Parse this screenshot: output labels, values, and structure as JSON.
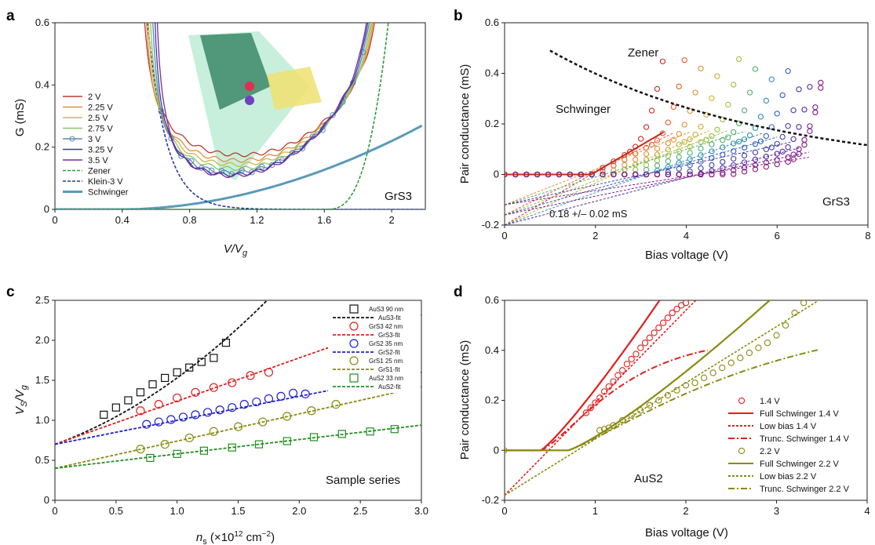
{
  "chart_data": [
    {
      "panel": "a",
      "type": "line",
      "xlabel": "V/V",
      "xlabel_sub": "g",
      "ylabel": "G (mS)",
      "xlim": [
        0,
        2.2
      ],
      "ylim": [
        0,
        0.6
      ],
      "xticks": [
        "0",
        "0.4",
        "0.8",
        "1.2",
        "1.6",
        "2"
      ],
      "yticks": [
        "0",
        "0.2",
        "0.4",
        "0.6"
      ],
      "annotation": "GrS3",
      "legend_placement": "left",
      "series": [
        {
          "name": "2 V",
          "color": "#c03a2b",
          "min_x": 1.05,
          "min_y": 0.12
        },
        {
          "name": "2.25 V",
          "color": "#d9913c",
          "min_x": 1.02,
          "min_y": 0.1
        },
        {
          "name": "2.5 V",
          "color": "#c8b84a",
          "min_x": 1.0,
          "min_y": 0.085
        },
        {
          "name": "2.75 V",
          "color": "#86c66a",
          "min_x": 0.98,
          "min_y": 0.07
        },
        {
          "name": "3 V",
          "color": "#5a8ab0",
          "min_x": 0.95,
          "min_y": 0.055,
          "markers": true
        },
        {
          "name": "3.25 V",
          "color": "#3c3ca0",
          "min_x": 0.93,
          "min_y": 0.045
        },
        {
          "name": "3.5 V",
          "color": "#7a2da0",
          "min_x": 0.92,
          "min_y": 0.04
        },
        {
          "name": "Zener",
          "color": "#2a9a3a",
          "style": "dashed"
        },
        {
          "name": "Klein-3 V",
          "color": "#2a3a9a",
          "style": "dashed"
        },
        {
          "name": "Schwinger",
          "color": "#5a9ab8",
          "style": "thick"
        }
      ]
    },
    {
      "panel": "b",
      "type": "scatter",
      "xlabel": "Bias voltage (V)",
      "ylabel": "Pair conductance (mS)",
      "xlim": [
        0,
        8
      ],
      "ylim": [
        -0.2,
        0.6
      ],
      "xticks": [
        "0",
        "2",
        "4",
        "6",
        "8"
      ],
      "yticks": [
        "-0.2",
        "0",
        "0.2",
        "0.4",
        "0.6"
      ],
      "annotations": [
        "Zener",
        "Schwinger",
        "GrS3",
        "0.18 +/– 0.02 mS"
      ],
      "colors": [
        "#c8281e",
        "#e06030",
        "#e09030",
        "#c8b030",
        "#9ac040",
        "#50b070",
        "#3090b0",
        "#3060c0",
        "#4040b0",
        "#5028a0",
        "#7a2090",
        "#8a1a80"
      ],
      "series_slopes": [
        0.105,
        0.098,
        0.09,
        0.083,
        0.076,
        0.07,
        0.064,
        0.058,
        0.052,
        0.047,
        0.043,
        0.04
      ],
      "series_intercept": -0.2,
      "series_xmax": [
        3.5,
        4.0,
        4.4,
        4.8,
        5.2,
        5.6,
        6.0,
        6.3,
        6.6,
        6.8,
        7.0,
        7.0
      ],
      "black_dashed": {
        "x": [
          1.0,
          2.0,
          3.0,
          4.0,
          5.0,
          6.0,
          7.0,
          8.0
        ],
        "y": [
          0.49,
          0.41,
          0.34,
          0.28,
          0.23,
          0.19,
          0.15,
          0.115
        ]
      }
    },
    {
      "panel": "c",
      "type": "scatter",
      "xlabel": "n",
      "xlabel_sub": "s",
      "xlabel_rest": " (×10",
      "xlabel_sup": "12",
      "xlabel_end": " cm",
      "xlabel_sup2": "−2",
      "xlabel_close": ")",
      "ylabel": "V",
      "ylabel_sub": "S",
      "ylabel_rest": "/V",
      "ylabel_sub2": "g",
      "xlim": [
        0,
        3.0
      ],
      "ylim": [
        0,
        2.5
      ],
      "xticks": [
        "0",
        "0.5",
        "1.0",
        "1.5",
        "2.0",
        "2.5",
        "3.0"
      ],
      "yticks": [
        "0",
        "0.5",
        "1.0",
        "1.5",
        "2.0",
        "2.5"
      ],
      "annotation": "Sample series",
      "legend_placement": "top-right",
      "series": [
        {
          "name": "AuS3 90 nm",
          "fit": "AuS3-fit",
          "color": "#111111",
          "marker": "square",
          "x": [
            0.4,
            0.5,
            0.6,
            0.7,
            0.8,
            0.9,
            1.0,
            1.1,
            1.2,
            1.3,
            1.4
          ],
          "y": [
            1.07,
            1.16,
            1.25,
            1.35,
            1.45,
            1.53,
            1.6,
            1.66,
            1.73,
            1.78,
            1.97
          ],
          "fit_a": 0.7,
          "fit_b": 0.55,
          "fit_c": 0.28
        },
        {
          "name": "GrS3 42 nm",
          "fit": "GrS3-fit",
          "color": "#e02020",
          "marker": "circle",
          "x": [
            0.7,
            0.85,
            1.0,
            1.15,
            1.3,
            1.45,
            1.6,
            1.75
          ],
          "y": [
            1.12,
            1.2,
            1.28,
            1.35,
            1.41,
            1.47,
            1.56,
            1.6
          ],
          "fit_a": 0.7,
          "fit_b": 0.54,
          "fit_c": 0.0
        },
        {
          "name": "GrS2 35 nm",
          "fit": "GrS2-fit",
          "color": "#2020d0",
          "marker": "circle",
          "x": [
            0.75,
            0.85,
            0.95,
            1.05,
            1.15,
            1.25,
            1.35,
            1.45,
            1.55,
            1.65,
            1.75,
            1.85,
            1.95,
            2.05
          ],
          "y": [
            0.95,
            0.98,
            1.01,
            1.04,
            1.07,
            1.1,
            1.13,
            1.16,
            1.2,
            1.23,
            1.27,
            1.3,
            1.34,
            1.33
          ],
          "fit_a": 0.7,
          "fit_b": 0.3,
          "fit_c": 0.0
        },
        {
          "name": "GrS1 25 nm",
          "fit": "GrS1-fit",
          "color": "#8a8a10",
          "marker": "circle",
          "x": [
            0.7,
            0.9,
            1.1,
            1.3,
            1.5,
            1.7,
            1.9,
            2.1,
            2.3
          ],
          "y": [
            0.64,
            0.7,
            0.78,
            0.86,
            0.92,
            0.98,
            1.05,
            1.12,
            1.2
          ],
          "fit_a": 0.4,
          "fit_b": 0.34,
          "fit_c": 0.0
        },
        {
          "name": "AuS2 33 nm",
          "fit": "AuS2-fit",
          "color": "#209020",
          "marker": "square",
          "x": [
            0.78,
            1.0,
            1.22,
            1.45,
            1.67,
            1.9,
            2.12,
            2.35,
            2.58,
            2.78
          ],
          "y": [
            0.53,
            0.58,
            0.62,
            0.66,
            0.7,
            0.74,
            0.79,
            0.83,
            0.86,
            0.89
          ],
          "fit_a": 0.4,
          "fit_b": 0.18,
          "fit_c": 0.0
        }
      ]
    },
    {
      "panel": "d",
      "type": "scatter",
      "xlabel": "Bias voltage (V)",
      "ylabel": "Pair conductance (mS)",
      "xlim": [
        0,
        4
      ],
      "ylim": [
        -0.2,
        0.6
      ],
      "xticks": [
        "0",
        "1",
        "2",
        "3",
        "4"
      ],
      "yticks": [
        "-0.2",
        "0",
        "0.2",
        "0.4",
        "0.6"
      ],
      "annotation": "AuS2",
      "legend_placement": "bottom-right",
      "legend": [
        "1.4 V",
        "Full Schwinger 1.4 V",
        "Low bias 1.4 V",
        "Trunc. Schwinger 1.4 V",
        "2.2 V",
        "Full Schwinger 2.2 V",
        "Low bias 2.2 V",
        "Trunc. Schwinger 2.2 V"
      ],
      "series_14": {
        "color": "#e01e1e",
        "points_x": [
          0.9,
          0.95,
          1.0,
          1.05,
          1.1,
          1.15,
          1.2,
          1.25,
          1.3,
          1.35,
          1.4,
          1.45,
          1.5,
          1.55,
          1.6,
          1.65,
          1.7,
          1.75,
          1.8,
          1.85,
          1.9,
          1.95,
          2.0
        ],
        "points_y": [
          0.15,
          0.17,
          0.19,
          0.21,
          0.235,
          0.255,
          0.275,
          0.3,
          0.32,
          0.345,
          0.365,
          0.385,
          0.41,
          0.43,
          0.45,
          0.47,
          0.49,
          0.51,
          0.53,
          0.55,
          0.565,
          0.58,
          0.59
        ]
      },
      "series_22": {
        "color": "#8a8a10",
        "points_x": [
          1.05,
          1.1,
          1.15,
          1.2,
          1.3,
          1.4,
          1.5,
          1.6,
          1.7,
          1.8,
          1.9,
          2.0,
          2.1,
          2.2,
          2.3,
          2.4,
          2.5,
          2.6,
          2.7,
          2.8,
          2.9,
          3.0,
          3.1,
          3.2,
          3.3
        ],
        "points_y": [
          0.08,
          0.085,
          0.09,
          0.1,
          0.12,
          0.14,
          0.16,
          0.18,
          0.2,
          0.22,
          0.24,
          0.26,
          0.27,
          0.29,
          0.31,
          0.33,
          0.35,
          0.37,
          0.39,
          0.41,
          0.43,
          0.46,
          0.5,
          0.55,
          0.59
        ]
      }
    }
  ],
  "panel_labels": [
    "a",
    "b",
    "c",
    "d"
  ]
}
